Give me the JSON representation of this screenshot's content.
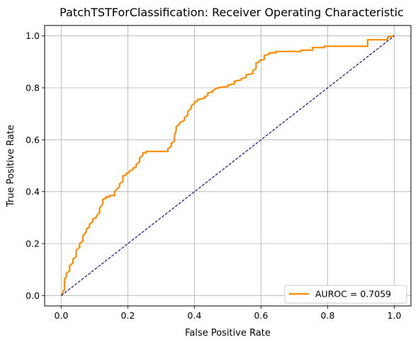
{
  "chart_data": {
    "type": "line",
    "title": "PatchTSTForClassification: Receiver Operating Characteristic",
    "xlabel": "False Positive Rate",
    "ylabel": "True Positive Rate",
    "xlim": [
      -0.05,
      1.05
    ],
    "ylim": [
      -0.04,
      1.04
    ],
    "grid": true,
    "legend_position": "lower-right",
    "xticks": [
      {
        "value": 0.0,
        "label": "0.0"
      },
      {
        "value": 0.2,
        "label": "0.2"
      },
      {
        "value": 0.4,
        "label": "0.4"
      },
      {
        "value": 0.6,
        "label": "0.6"
      },
      {
        "value": 0.8,
        "label": "0.8"
      },
      {
        "value": 1.0,
        "label": "1.0"
      }
    ],
    "yticks": [
      {
        "value": 0.0,
        "label": "0.0"
      },
      {
        "value": 0.2,
        "label": "0.2"
      },
      {
        "value": 0.4,
        "label": "0.4"
      },
      {
        "value": 0.6,
        "label": "0.6"
      },
      {
        "value": 0.8,
        "label": "0.8"
      },
      {
        "value": 1.0,
        "label": "1.0"
      }
    ],
    "series": [
      {
        "name": "AUROC = 0.7059",
        "color": "#ff8c00",
        "style": "solid",
        "x": [
          0.0,
          0.01,
          0.01,
          0.015,
          0.015,
          0.025,
          0.025,
          0.035,
          0.035,
          0.045,
          0.045,
          0.055,
          0.055,
          0.065,
          0.065,
          0.075,
          0.075,
          0.085,
          0.085,
          0.095,
          0.095,
          0.105,
          0.105,
          0.115,
          0.115,
          0.125,
          0.125,
          0.135,
          0.135,
          0.145,
          0.145,
          0.16,
          0.16,
          0.175,
          0.175,
          0.185,
          0.185,
          0.195,
          0.195,
          0.205,
          0.205,
          0.215,
          0.215,
          0.225,
          0.225,
          0.235,
          0.235,
          0.245,
          0.245,
          0.255,
          0.255,
          0.32,
          0.32,
          0.33,
          0.33,
          0.34,
          0.34,
          0.345,
          0.345,
          0.355,
          0.355,
          0.37,
          0.37,
          0.38,
          0.38,
          0.39,
          0.39,
          0.4,
          0.4,
          0.41,
          0.41,
          0.43,
          0.43,
          0.44,
          0.44,
          0.455,
          0.455,
          0.47,
          0.47,
          0.5,
          0.5,
          0.52,
          0.52,
          0.54,
          0.54,
          0.555,
          0.555,
          0.575,
          0.575,
          0.585,
          0.585,
          0.595,
          0.595,
          0.61,
          0.61,
          0.625,
          0.625,
          0.645,
          0.645,
          0.72,
          0.72,
          0.755,
          0.755,
          0.79,
          0.79,
          0.92,
          0.92,
          0.98,
          0.98,
          1.0
        ],
        "y": [
          0.0,
          0.025,
          0.065,
          0.07,
          0.085,
          0.095,
          0.115,
          0.125,
          0.14,
          0.15,
          0.175,
          0.185,
          0.2,
          0.21,
          0.23,
          0.245,
          0.255,
          0.265,
          0.275,
          0.285,
          0.295,
          0.3,
          0.305,
          0.32,
          0.335,
          0.355,
          0.37,
          0.375,
          0.38,
          0.38,
          0.385,
          0.385,
          0.4,
          0.42,
          0.43,
          0.44,
          0.46,
          0.465,
          0.47,
          0.475,
          0.48,
          0.485,
          0.49,
          0.495,
          0.505,
          0.515,
          0.53,
          0.54,
          0.55,
          0.55,
          0.555,
          0.555,
          0.565,
          0.575,
          0.585,
          0.595,
          0.615,
          0.635,
          0.65,
          0.66,
          0.665,
          0.675,
          0.685,
          0.695,
          0.71,
          0.72,
          0.73,
          0.74,
          0.745,
          0.75,
          0.755,
          0.76,
          0.765,
          0.77,
          0.78,
          0.785,
          0.79,
          0.8,
          0.8,
          0.805,
          0.81,
          0.815,
          0.825,
          0.83,
          0.835,
          0.84,
          0.85,
          0.855,
          0.865,
          0.875,
          0.895,
          0.9,
          0.905,
          0.91,
          0.925,
          0.93,
          0.935,
          0.935,
          0.94,
          0.94,
          0.945,
          0.945,
          0.955,
          0.955,
          0.96,
          0.96,
          0.985,
          0.985,
          0.995,
          1.0
        ]
      },
      {
        "name": "",
        "color": "#000080",
        "style": "dashed",
        "x": [
          0.0,
          1.0
        ],
        "y": [
          0.0,
          1.0
        ]
      }
    ],
    "legend": [
      {
        "label": "AUROC = 0.7059",
        "color": "#ff8c00"
      }
    ]
  }
}
